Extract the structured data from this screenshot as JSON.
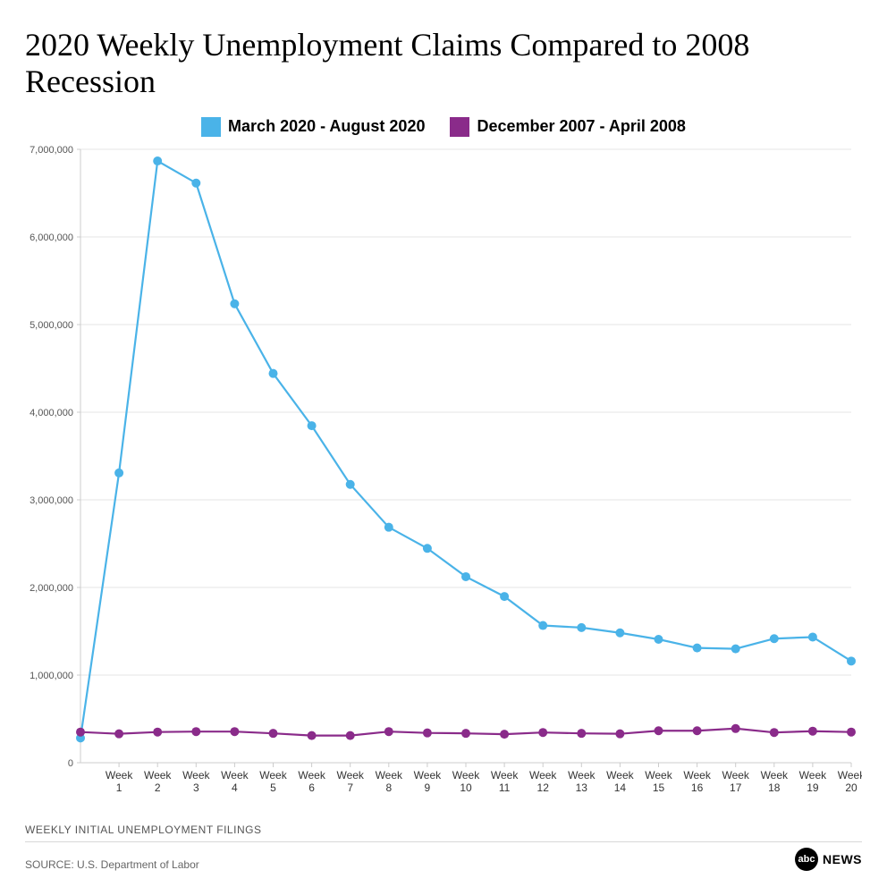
{
  "title": "2020 Weekly Unemployment Claims Compared to 2008 Recession",
  "subtitle": "WEEKLY INITIAL UNEMPLOYMENT FILINGS",
  "source": "SOURCE: U.S. Department of Labor",
  "logo": {
    "circle": "abc",
    "text": "NEWS"
  },
  "legend": [
    {
      "label": "March 2020 - August 2020",
      "color": "#4ab3e8"
    },
    {
      "label": "December 2007 - April 2008",
      "color": "#8a2b8a"
    }
  ],
  "chart": {
    "type": "line",
    "background_color": "#ffffff",
    "grid_color": "#e5e5e5",
    "axis_color": "#cccccc",
    "ylim": [
      0,
      7000000
    ],
    "ytick_step": 1000000,
    "yticks": [
      0,
      1000000,
      2000000,
      3000000,
      4000000,
      5000000,
      6000000,
      7000000
    ],
    "ytick_labels": [
      "0",
      "1,000,000",
      "2,000,000",
      "3,000,000",
      "4,000,000",
      "5,000,000",
      "6,000,000",
      "7,000,000"
    ],
    "xticks_top": [
      "Week",
      "Week",
      "Week",
      "Week",
      "Week",
      "Week",
      "Week",
      "Week",
      "Week",
      "Week",
      "Week",
      "Week",
      "Week",
      "Week",
      "Week",
      "Week",
      "Week",
      "Week",
      "Week",
      "Week"
    ],
    "xticks_num": [
      "1",
      "2",
      "3",
      "4",
      "5",
      "6",
      "7",
      "8",
      "9",
      "10",
      "11",
      "12",
      "13",
      "14",
      "15",
      "16",
      "17",
      "18",
      "19",
      "20"
    ],
    "marker_radius": 5,
    "line_width": 2.2,
    "tick_fontsize": 11,
    "series": [
      {
        "name": "2020",
        "color": "#4ab3e8",
        "values": [
          282000,
          3307000,
          6867000,
          6615000,
          5237000,
          4442000,
          3846000,
          3176000,
          2687000,
          2446000,
          2123000,
          1897000,
          1566000,
          1542000,
          1482000,
          1408000,
          1310000,
          1300000,
          1416000,
          1434000,
          1160000
        ]
      },
      {
        "name": "2008",
        "color": "#8a2b8a",
        "values": [
          350000,
          330000,
          350000,
          355000,
          355000,
          335000,
          310000,
          310000,
          355000,
          340000,
          335000,
          325000,
          345000,
          335000,
          330000,
          365000,
          365000,
          390000,
          345000,
          360000,
          350000
        ]
      }
    ]
  }
}
